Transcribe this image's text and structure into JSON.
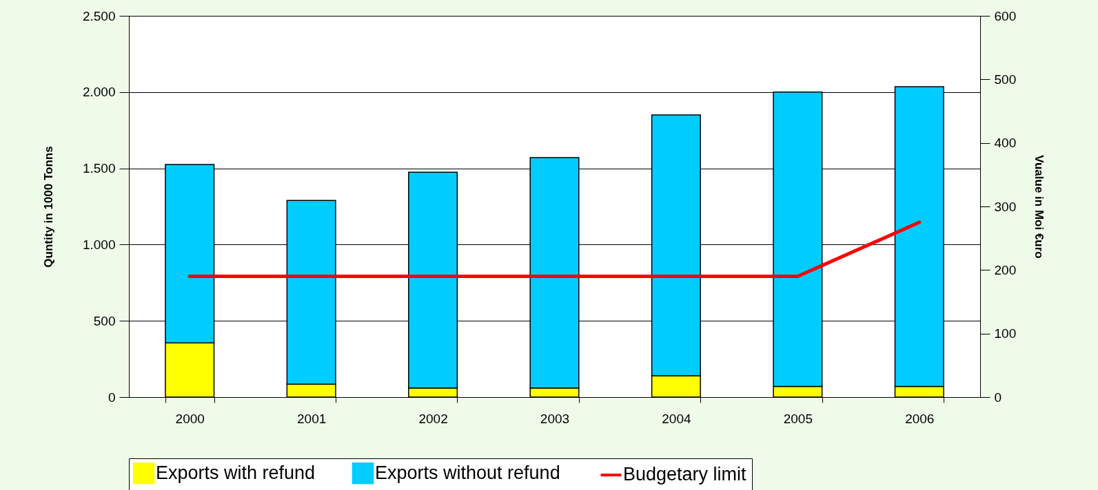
{
  "chart_data": {
    "type": "bar",
    "stacked": true,
    "categories": [
      "2000",
      "2001",
      "2002",
      "2003",
      "2004",
      "2005",
      "2006"
    ],
    "xlabel": null,
    "ylabel": "Quntity in 1000 Tonns",
    "y2label": "Vualue in Moi €uro",
    "series": [
      {
        "name": "Exports with refund",
        "color": "#ffff00",
        "values": [
          355,
          85,
          60,
          60,
          140,
          70,
          70
        ]
      },
      {
        "name": "Exports without refund",
        "color": "#00ccff",
        "values": [
          1170,
          1205,
          1415,
          1510,
          1710,
          1930,
          1965
        ]
      },
      {
        "name": "Budgetary limit",
        "type": "line",
        "axis": "y2",
        "color": "#ff0000",
        "values": [
          190,
          190,
          190,
          190,
          190,
          190,
          275
        ]
      }
    ],
    "ylim": [
      0,
      2500
    ],
    "yticks": [
      0,
      500,
      {
        "value": 1000,
        "label": "1.000"
      },
      {
        "value": 1500,
        "label": "1.500"
      },
      {
        "value": 2000,
        "label": "2.000"
      },
      {
        "value": 2500,
        "label": "2.500"
      }
    ],
    "y2lim": [
      0,
      600
    ],
    "y2ticks": [
      0,
      100,
      200,
      300,
      400,
      500,
      600
    ],
    "grid": "y",
    "legend": "bottom"
  }
}
